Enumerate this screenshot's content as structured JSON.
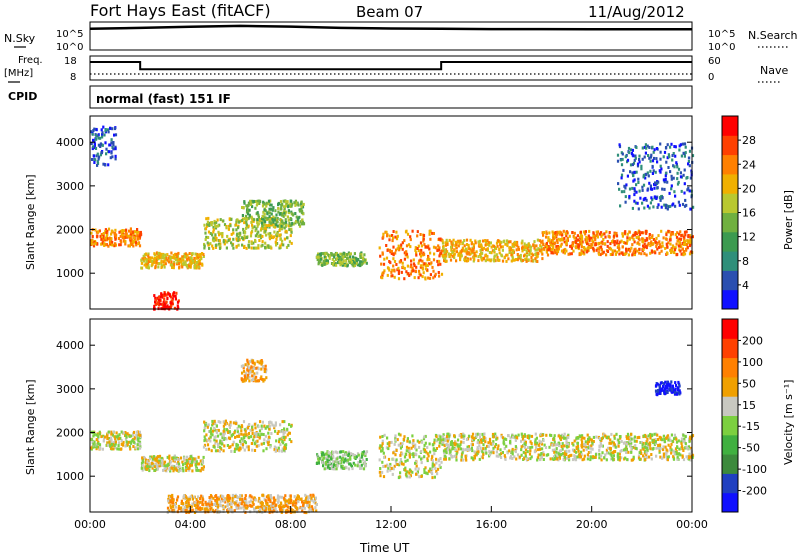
{
  "header": {
    "site": "Fort Hays East (fitACF)",
    "beam": "Beam 07",
    "date": "11/Aug/2012"
  },
  "left_labels": {
    "nsky": "N.Sky",
    "freq": "Freq.",
    "freq_unit": "[MHz]",
    "cpid": "CPID"
  },
  "right_labels": {
    "nsearch": "N.Search",
    "nave": "Nave"
  },
  "mode_text": "normal (fast) 151 IF",
  "colors": {
    "power_scale": [
      "#1010ff",
      "#2a4fb0",
      "#2f8f7a",
      "#3c9a50",
      "#70b040",
      "#b9c830",
      "#f0b000",
      "#ff8000",
      "#ff4000",
      "#ff0000"
    ],
    "velocity_scale": [
      "#1010ff",
      "#2040c0",
      "#3c8a3c",
      "#40b040",
      "#7cd040",
      "#c8c8c0",
      "#f0a000",
      "#ff8000",
      "#ff4000",
      "#ff0000"
    ],
    "ground_scatter": "#c8c8c0"
  },
  "chart_data": [
    {
      "type": "line",
      "name": "noise-panel",
      "left_ticks": [
        "10^5",
        "10^0"
      ],
      "right_ticks": [
        "10^5",
        "10^0"
      ],
      "series": [
        {
          "values": [
            6000,
            9000,
            14000,
            20000,
            15000,
            9000,
            7000,
            6000,
            5500,
            5500,
            5000,
            5000,
            5000
          ]
        }
      ],
      "x": [
        0,
        2,
        4,
        6,
        8,
        10,
        12,
        14,
        16,
        18,
        20,
        22,
        24
      ]
    },
    {
      "type": "line",
      "name": "frequency-panel",
      "left_ticks": [
        "18",
        "8"
      ],
      "right_ticks": [
        "60",
        "0"
      ],
      "ylim": [
        8,
        18
      ],
      "series": [
        {
          "values_step": [
            [
              0,
              2,
              15.5
            ],
            [
              2,
              14,
              12.5
            ],
            [
              14,
              24,
              15.5
            ]
          ]
        },
        {
          "values_step": [
            [
              0,
              24,
              10.5
            ]
          ]
        }
      ]
    },
    {
      "type": "heatmap",
      "name": "power-panel",
      "ylabel": "Slant Range [km]",
      "ylim": [
        180,
        4600
      ],
      "yticks": [
        "4000",
        "3000",
        "2000",
        "1000"
      ],
      "xlim": [
        0,
        24
      ],
      "colorbar_label": "Power [dB]",
      "colorbar_ticks": [
        "28",
        "24",
        "20",
        "16",
        "12",
        "8",
        "4"
      ],
      "bands": [
        {
          "t0": 0.0,
          "t1": 2.0,
          "r0": 1650,
          "r1": 2050,
          "level": 7
        },
        {
          "t0": 2.0,
          "t1": 4.5,
          "r0": 1150,
          "r1": 1500,
          "level": 6
        },
        {
          "t0": 4.5,
          "t1": 8.0,
          "r0": 1600,
          "r1": 2300,
          "level": 5
        },
        {
          "t0": 6.0,
          "t1": 8.5,
          "r0": 2100,
          "r1": 2700,
          "level": 4
        },
        {
          "t0": 9.0,
          "t1": 11.0,
          "r0": 1200,
          "r1": 1500,
          "level": 4
        },
        {
          "t0": 11.5,
          "t1": 14.0,
          "r0": 900,
          "r1": 2000,
          "level": 7
        },
        {
          "t0": 14.0,
          "t1": 18.0,
          "r0": 1300,
          "r1": 1800,
          "level": 6
        },
        {
          "t0": 18.0,
          "t1": 24.0,
          "r0": 1450,
          "r1": 2000,
          "level": 7
        },
        {
          "t0": 2.5,
          "t1": 3.5,
          "r0": 200,
          "r1": 600,
          "level": 9
        },
        {
          "t0": 0.0,
          "t1": 1.0,
          "r0": 3500,
          "r1": 4400,
          "level": 1
        },
        {
          "t0": 21.0,
          "t1": 24.0,
          "r0": 2500,
          "r1": 4000,
          "level": 1
        }
      ]
    },
    {
      "type": "heatmap",
      "name": "velocity-panel",
      "ylabel": "Slant Range [km]",
      "xlabel": "Time UT",
      "ylim": [
        180,
        4600
      ],
      "yticks": [
        "4000",
        "3000",
        "2000",
        "1000"
      ],
      "xlim": [
        0,
        24
      ],
      "xticks": [
        "00:00",
        "04:00",
        "08:00",
        "12:00",
        "16:00",
        "20:00",
        "00:00"
      ],
      "colorbar_label": "Velocity [m s⁻¹]",
      "colorbar_ticks": [
        "200",
        "100",
        "50",
        "15",
        "-15",
        "-50",
        "-100",
        "-200"
      ],
      "bands": [
        {
          "t0": 0.0,
          "t1": 2.0,
          "r0": 1650,
          "r1": 2050,
          "level": 5
        },
        {
          "t0": 2.0,
          "t1": 4.5,
          "r0": 1150,
          "r1": 1500,
          "level": 5
        },
        {
          "t0": 4.5,
          "t1": 8.0,
          "r0": 1600,
          "r1": 2300,
          "level": 5
        },
        {
          "t0": 9.0,
          "t1": 11.0,
          "r0": 1200,
          "r1": 1600,
          "level": 4
        },
        {
          "t0": 11.5,
          "t1": 14.0,
          "r0": 1000,
          "r1": 2000,
          "level": 5
        },
        {
          "t0": 14.0,
          "t1": 24.0,
          "r0": 1400,
          "r1": 2000,
          "level": 5
        },
        {
          "t0": 6.0,
          "t1": 7.0,
          "r0": 3200,
          "r1": 3700,
          "level": 6
        },
        {
          "t0": 3.0,
          "t1": 9.0,
          "r0": 200,
          "r1": 600,
          "level": 6
        },
        {
          "t0": 22.5,
          "t1": 23.5,
          "r0": 2900,
          "r1": 3200,
          "level": 0
        }
      ]
    }
  ]
}
